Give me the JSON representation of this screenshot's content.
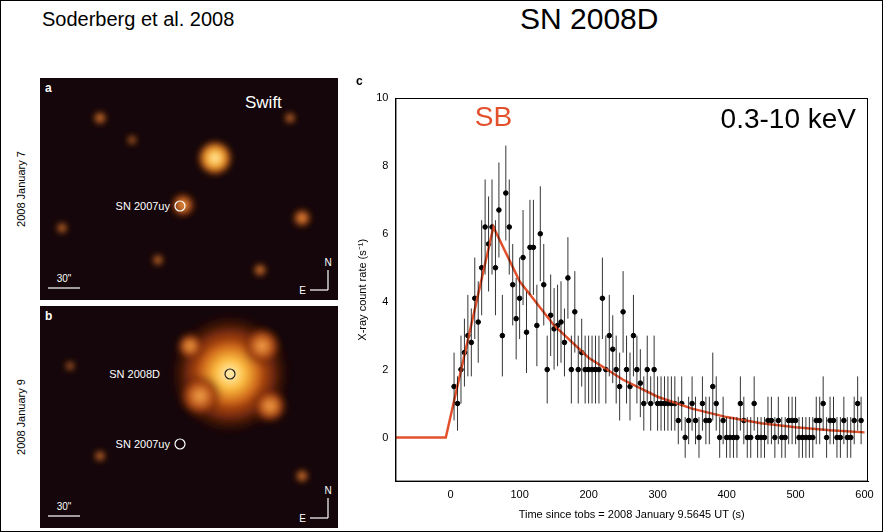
{
  "header": {
    "citation": "Soderberg et al. 2008",
    "title": "SN 2008D"
  },
  "images": [
    {
      "letter": "a",
      "date": "2008 January 7",
      "telescope": "Swift",
      "sources": [
        "SN 2007uy"
      ],
      "scale": "30\"",
      "compass": [
        "N",
        "E"
      ]
    },
    {
      "letter": "b",
      "date": "2008 January 9",
      "sources": [
        "SN 2008D",
        "SN 2007uy"
      ],
      "scale": "30\"",
      "compass": [
        "N",
        "E"
      ]
    }
  ],
  "chart_data": {
    "letter": "c",
    "type": "scatter",
    "xlabel": "Time since tobs = 2008 January 9.5645 UT (s)",
    "ylabel": "X-ray count rate (s⁻¹)",
    "annotations": [
      "0.3-10 keV"
    ],
    "xlim": [
      -80,
      605
    ],
    "xticks": [
      0,
      100,
      200,
      300,
      400,
      500,
      600
    ],
    "ylim": [
      -1.3,
      10
    ],
    "yticks": [
      0,
      2,
      4,
      6,
      8,
      10
    ],
    "grid": false,
    "series": [
      {
        "type": "scatter",
        "color": "#000000",
        "marker": "circle",
        "x": [
          5,
          10,
          15,
          20,
          25,
          30,
          35,
          40,
          45,
          50,
          55,
          60,
          65,
          70,
          75,
          80,
          85,
          90,
          95,
          100,
          105,
          110,
          115,
          120,
          125,
          130,
          135,
          140,
          145,
          150,
          155,
          160,
          165,
          170,
          175,
          180,
          185,
          190,
          195,
          200,
          205,
          210,
          215,
          220,
          225,
          230,
          235,
          240,
          245,
          250,
          255,
          260,
          265,
          270,
          275,
          280,
          285,
          290,
          295,
          300,
          305,
          310,
          315,
          320,
          325,
          330,
          335,
          340,
          345,
          350,
          355,
          360,
          365,
          370,
          375,
          380,
          385,
          390,
          395,
          400,
          405,
          410,
          415,
          420,
          425,
          430,
          435,
          440,
          445,
          450,
          455,
          460,
          465,
          470,
          475,
          480,
          485,
          490,
          495,
          500,
          505,
          510,
          515,
          520,
          525,
          530,
          535,
          540,
          545,
          550,
          555,
          560,
          565,
          570,
          575,
          580,
          585,
          590,
          595
        ],
        "values": [
          1.5,
          1.0,
          2.0,
          2.5,
          3.0,
          2.8,
          4.1,
          3.4,
          5.0,
          6.2,
          5.7,
          6.2,
          5.0,
          6.7,
          3.0,
          7.2,
          6.2,
          4.5,
          3.5,
          4.1,
          5.3,
          3.1,
          5.6,
          5.6,
          3.3,
          6.0,
          4.5,
          2.0,
          3.6,
          3.2,
          3.3,
          3.4,
          2.8,
          4.7,
          2.0,
          3.7,
          2.0,
          2.5,
          2.0,
          2.0,
          2.0,
          2.0,
          2.0,
          4.1,
          2.0,
          3.0,
          2.6,
          2.0,
          1.5,
          3.7,
          2.0,
          1.5,
          3.0,
          2.0,
          1.6,
          1.0,
          2.0,
          1.0,
          2.0,
          1.0,
          1.0,
          1.0,
          1.0,
          1.0,
          1.0,
          0.5,
          1.0,
          0.0,
          0.5,
          1.0,
          0.5,
          0.0,
          1.0,
          0.5,
          0.5,
          1.5,
          1.0,
          0.0,
          0.5,
          0.0,
          0.0,
          0.0,
          0.0,
          1.0,
          0.5,
          0.0,
          0.0,
          1.0,
          0.0,
          0.0,
          0.0,
          0.5,
          0.5,
          0.0,
          0.5,
          0.0,
          0.0,
          0.5,
          0.5,
          0.5,
          0.0,
          0.0,
          0.0,
          0.0,
          0.0,
          0.5,
          0.5,
          1.0,
          0.0,
          0.5,
          0.5,
          0.0,
          0.0,
          0.5,
          0.0,
          0.0,
          0.5,
          1.0,
          0.5
        ],
        "errors": [
          1.0,
          0.8,
          1.0,
          1.0,
          1.2,
          1.0,
          1.2,
          1.2,
          1.4,
          1.4,
          1.4,
          1.4,
          1.4,
          1.4,
          1.2,
          1.4,
          1.4,
          1.2,
          1.2,
          1.2,
          1.4,
          1.2,
          1.4,
          1.4,
          1.2,
          1.4,
          1.2,
          1.0,
          1.2,
          1.2,
          1.2,
          1.2,
          1.0,
          1.2,
          1.0,
          1.2,
          1.0,
          1.0,
          1.0,
          1.0,
          1.0,
          1.0,
          1.0,
          1.2,
          1.0,
          1.2,
          1.0,
          1.0,
          1.0,
          1.2,
          1.0,
          1.0,
          1.2,
          1.0,
          1.0,
          0.8,
          1.0,
          0.8,
          1.0,
          0.8,
          0.8,
          0.8,
          0.8,
          0.8,
          0.8,
          0.7,
          0.8,
          0.6,
          0.7,
          0.8,
          0.7,
          0.6,
          0.8,
          0.7,
          0.7,
          1.0,
          0.8,
          0.6,
          0.7,
          0.6,
          0.6,
          0.6,
          0.6,
          0.8,
          0.7,
          0.6,
          0.6,
          0.8,
          0.6,
          0.6,
          0.6,
          0.7,
          0.7,
          0.6,
          0.7,
          0.6,
          0.6,
          0.7,
          0.7,
          0.7,
          0.6,
          0.6,
          0.6,
          0.6,
          0.6,
          0.7,
          0.7,
          0.8,
          0.6,
          0.7,
          0.7,
          0.6,
          0.6,
          0.7,
          0.6,
          0.6,
          0.7,
          0.8,
          0.7
        ]
      },
      {
        "name": "SB",
        "type": "line",
        "color": "#e2502c",
        "line_style": "solid",
        "x": [
          -80,
          -7,
          62,
          100,
          150,
          200,
          250,
          300,
          350,
          400,
          450,
          500,
          550,
          600
        ],
        "values": [
          0,
          0,
          6.2,
          4.6,
          3.3,
          2.35,
          1.7,
          1.2,
          0.85,
          0.6,
          0.42,
          0.3,
          0.21,
          0.15
        ]
      }
    ]
  }
}
